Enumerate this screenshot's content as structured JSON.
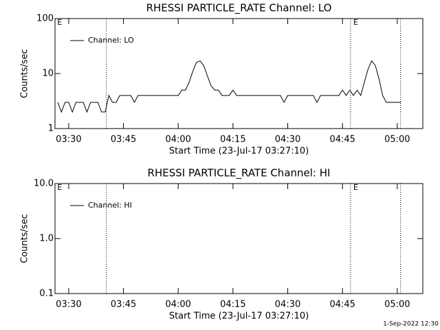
{
  "chart_data": [
    {
      "type": "line",
      "title": "RHESSI PARTICLE_RATE Channel: LO",
      "x_label": "Start Time (23-Jul-17 03:27:10)",
      "y_label": "Counts/sec",
      "log_y": true,
      "legend": "upper left",
      "xlim": [
        206.25,
        307
      ],
      "xticks": [
        {
          "value": 210,
          "label": "03:30"
        },
        {
          "value": 225,
          "label": "03:45"
        },
        {
          "value": 240,
          "label": "04:00"
        },
        {
          "value": 255,
          "label": "04:15"
        },
        {
          "value": 270,
          "label": "04:30"
        },
        {
          "value": 285,
          "label": "04:45"
        },
        {
          "value": 300,
          "label": "05:00"
        }
      ],
      "ylim": [
        1,
        100
      ],
      "yticks": [
        1,
        10,
        100
      ],
      "vlines": [
        220.3,
        287.2,
        300.9
      ],
      "annotations": [
        {
          "x": 206.5,
          "label": "E"
        },
        {
          "x": 287.6,
          "label": "E"
        }
      ],
      "x": [
        207,
        208,
        209,
        210,
        211,
        212,
        213,
        214,
        215,
        216,
        217,
        218,
        219,
        220,
        221,
        222,
        223,
        224,
        225,
        226,
        227,
        228,
        229,
        230,
        231,
        232,
        233,
        234,
        235,
        236,
        237,
        238,
        239,
        240,
        241,
        242,
        243,
        244,
        245,
        246,
        247,
        248,
        249,
        250,
        251,
        252,
        253,
        254,
        255,
        256,
        257,
        258,
        259,
        260,
        261,
        262,
        263,
        264,
        265,
        266,
        267,
        268,
        269,
        270,
        271,
        272,
        273,
        274,
        275,
        276,
        277,
        278,
        279,
        280,
        281,
        282,
        283,
        284,
        285,
        286,
        287,
        288,
        289,
        290,
        291,
        292,
        293,
        294,
        295,
        296,
        297,
        298,
        299,
        300,
        301
      ],
      "series": [
        {
          "name": "Channel: LO",
          "color": "#000000",
          "values": [
            3,
            2,
            3,
            3,
            2,
            3,
            3,
            3,
            2,
            3,
            3,
            3,
            2,
            2,
            4,
            3,
            3,
            4,
            4,
            4,
            4,
            3,
            4,
            4,
            4,
            4,
            4,
            4,
            4,
            4,
            4,
            4,
            4,
            4,
            5,
            5,
            7,
            11,
            16,
            17,
            14,
            9,
            6,
            5,
            5,
            4,
            4,
            4,
            5,
            4,
            4,
            4,
            4,
            4,
            4,
            4,
            4,
            4,
            4,
            4,
            4,
            4,
            3,
            4,
            4,
            4,
            4,
            4,
            4,
            4,
            4,
            3,
            4,
            4,
            4,
            4,
            4,
            4,
            5,
            4,
            5,
            4,
            5,
            4,
            7,
            12,
            17,
            14,
            8,
            4,
            3,
            3,
            3,
            3,
            3
          ]
        }
      ]
    },
    {
      "type": "line",
      "title": "RHESSI PARTICLE_RATE Channel: HI",
      "x_label": "Start Time (23-Jul-17 03:27:10)",
      "y_label": "Counts/sec",
      "log_y": true,
      "legend": "upper left",
      "xlim": [
        206.25,
        307
      ],
      "xticks": [
        {
          "value": 210,
          "label": "03:30"
        },
        {
          "value": 225,
          "label": "03:45"
        },
        {
          "value": 240,
          "label": "04:00"
        },
        {
          "value": 255,
          "label": "04:15"
        },
        {
          "value": 270,
          "label": "04:30"
        },
        {
          "value": 285,
          "label": "04:45"
        },
        {
          "value": 300,
          "label": "05:00"
        }
      ],
      "ylim": [
        0.1,
        10
      ],
      "yticks": [
        {
          "value": 0.1,
          "label": "0.1"
        },
        {
          "value": 1,
          "label": "1.0"
        },
        {
          "value": 10,
          "label": "10.0"
        }
      ],
      "vlines": [
        220.3,
        287.2,
        300.9
      ],
      "annotations": [
        {
          "x": 206.5,
          "label": "E"
        },
        {
          "x": 287.6,
          "label": "E"
        }
      ],
      "x": [],
      "series": [
        {
          "name": "Channel: HI",
          "color": "#000000",
          "values": []
        }
      ]
    }
  ],
  "footer": "1-Sep-2022 12:30"
}
